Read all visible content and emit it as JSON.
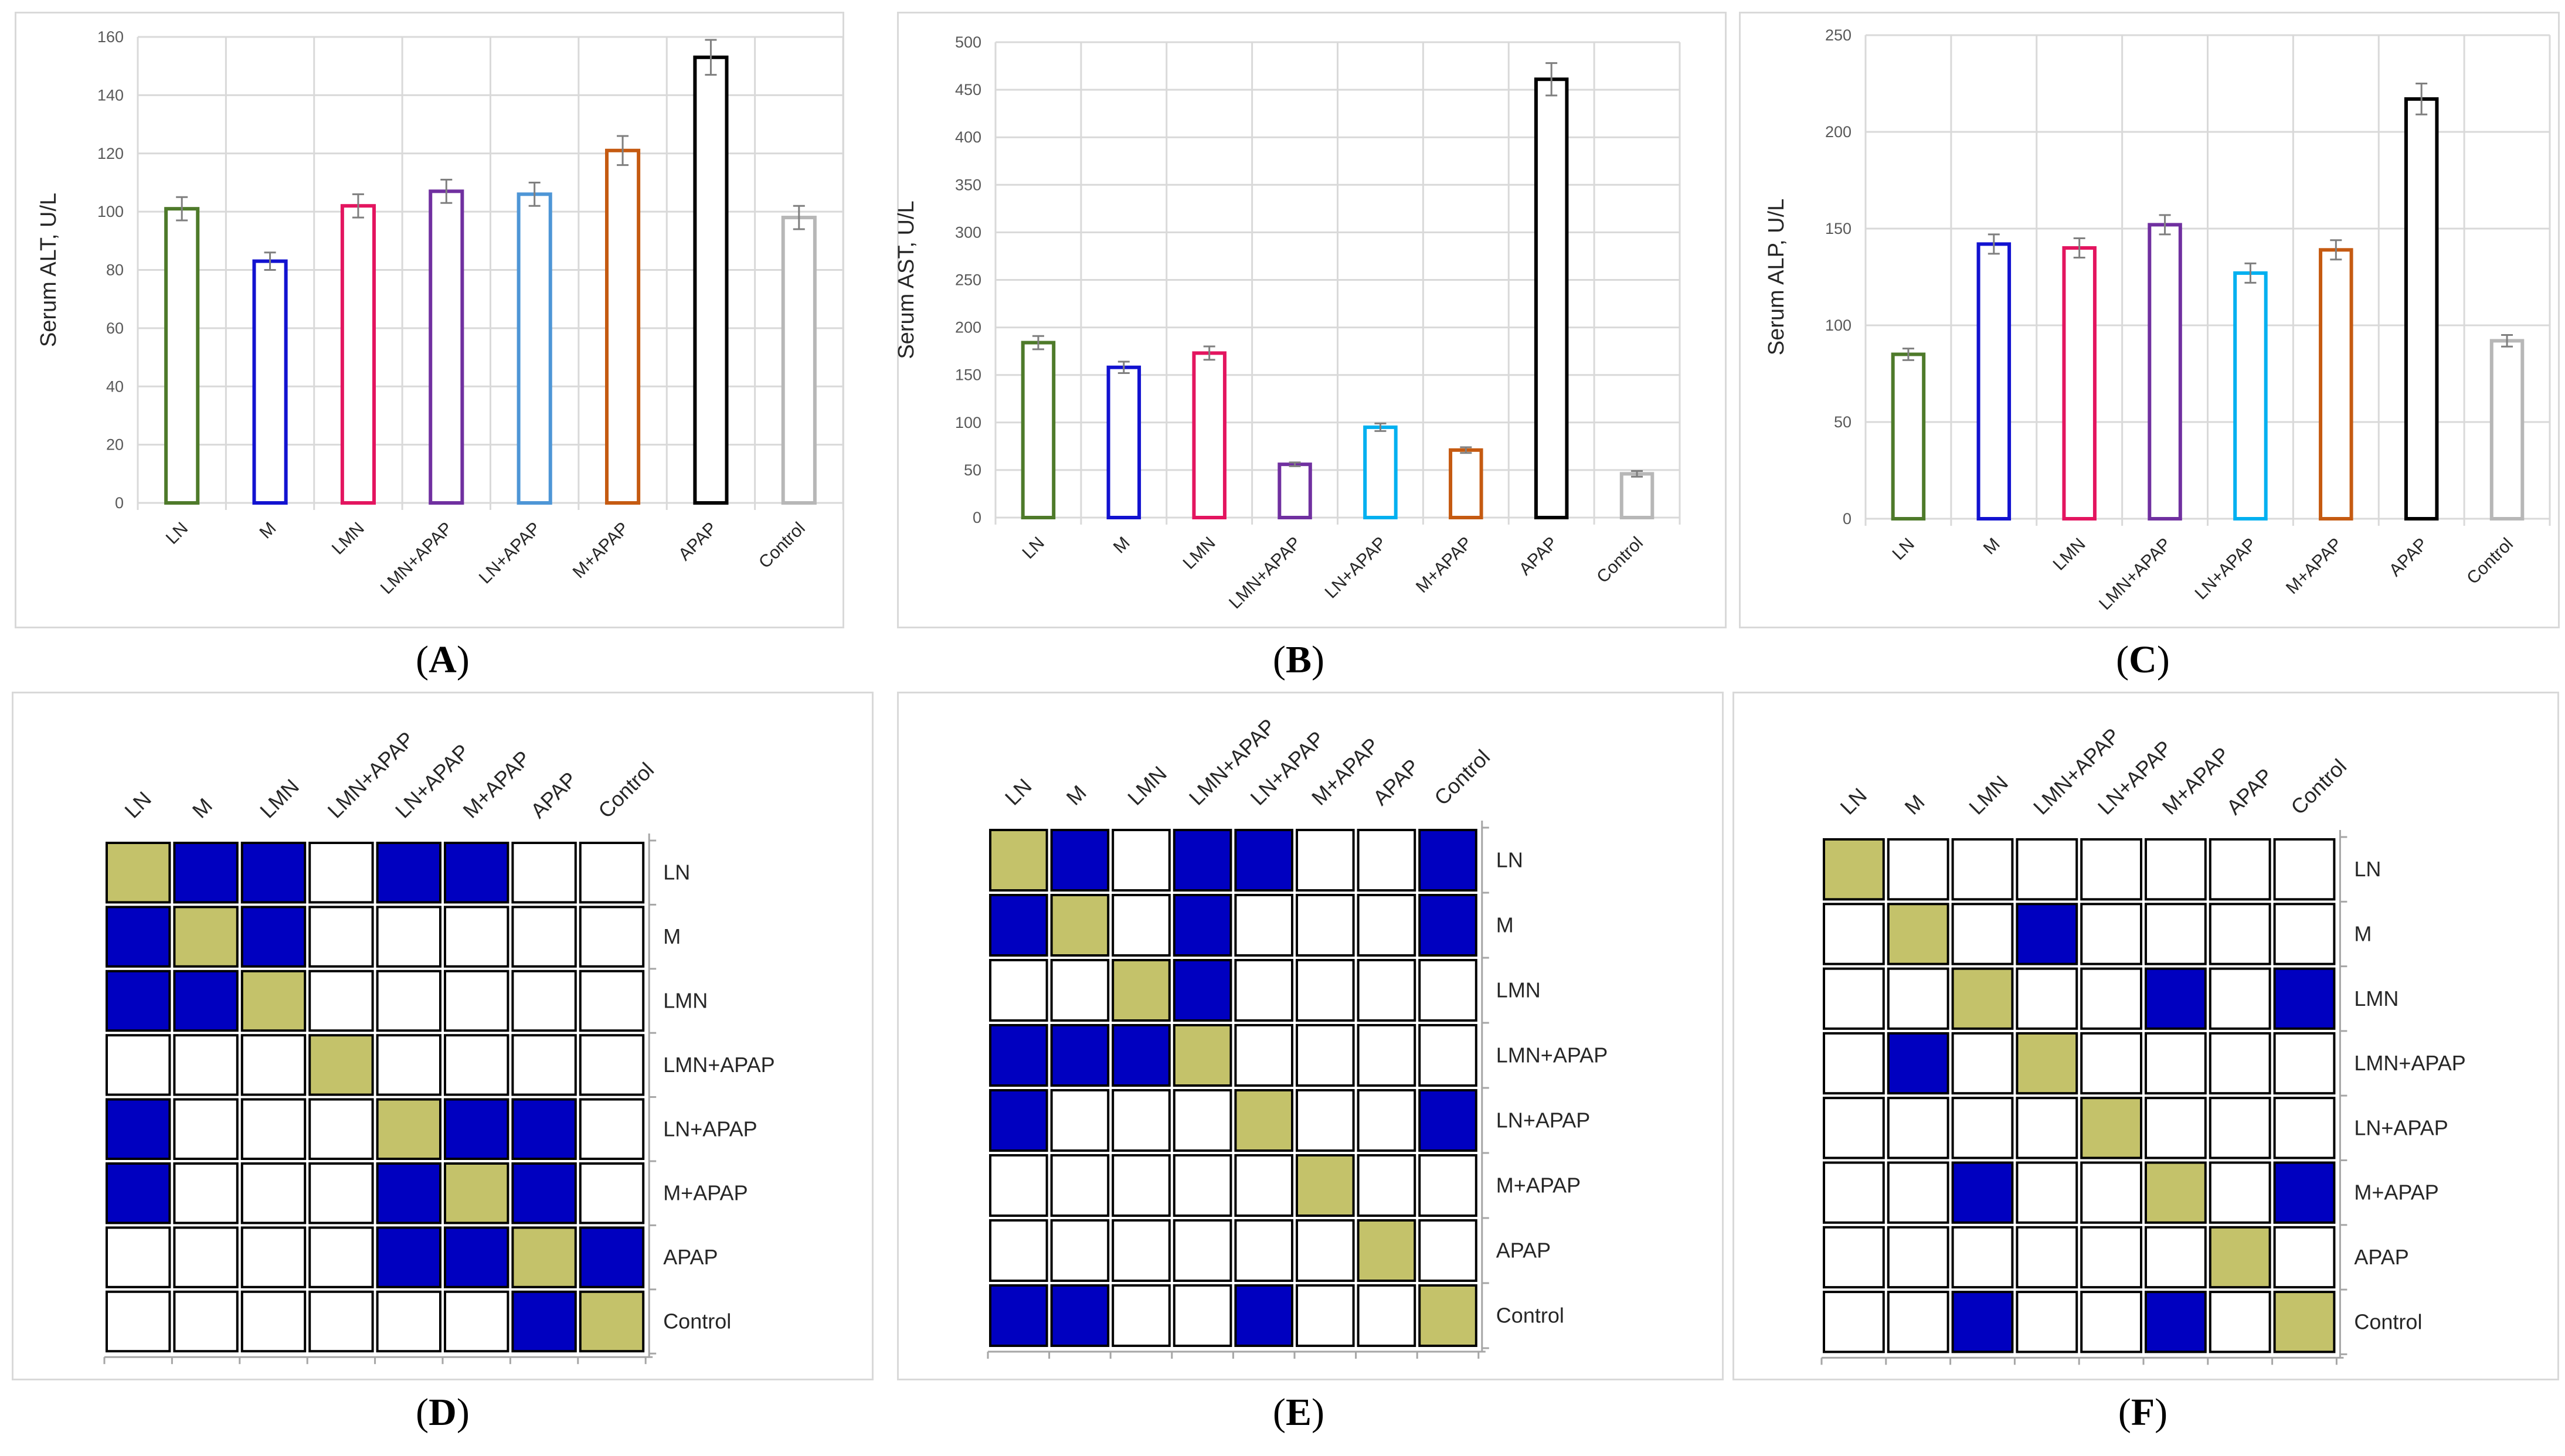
{
  "charts": [
    {
      "id": "A",
      "type": "bar",
      "caption_letter": "A",
      "ylabel": "Serum ALT, U/L",
      "ylim": [
        0,
        160
      ],
      "yticks": [
        0,
        20,
        40,
        60,
        80,
        100,
        120,
        140,
        160
      ],
      "categories": [
        "LN",
        "M",
        "LMN",
        "LMN+APAP",
        "LN+APAP",
        "M+APAP",
        "APAP",
        "Control"
      ],
      "values": [
        101,
        83,
        102,
        107,
        106,
        121,
        153,
        98
      ],
      "errors": [
        4,
        3,
        4,
        4,
        4,
        5,
        6,
        4
      ],
      "colors": [
        "#4e7a2a",
        "#1212d0",
        "#e3155f",
        "#7030a0",
        "#4e96d6",
        "#c55a11",
        "#000000",
        "#b7b7b7"
      ]
    },
    {
      "id": "B",
      "type": "bar",
      "caption_letter": "B",
      "ylabel": "Serum AST, U/L",
      "ylim": [
        0,
        500
      ],
      "yticks": [
        0,
        50,
        100,
        150,
        200,
        250,
        300,
        350,
        400,
        450,
        500
      ],
      "categories": [
        "LN",
        "M",
        "LMN",
        "LMN+APAP",
        "LN+APAP",
        "M+APAP",
        "APAP",
        "Control"
      ],
      "values": [
        184,
        158,
        173,
        56,
        95,
        71,
        461,
        46
      ],
      "errors": [
        7,
        6,
        7,
        2,
        4,
        3,
        17,
        3
      ],
      "colors": [
        "#4e7a2a",
        "#1212d0",
        "#e3155f",
        "#7030a0",
        "#00b0f0",
        "#c55a11",
        "#000000",
        "#b7b7b7"
      ]
    },
    {
      "id": "C",
      "type": "bar",
      "caption_letter": "C",
      "ylabel": "Serum ALP, U/L",
      "ylim": [
        0,
        250
      ],
      "yticks": [
        0,
        50,
        100,
        150,
        200,
        250
      ],
      "categories": [
        "LN",
        "M",
        "LMN",
        "LMN+APAP",
        "LN+APAP",
        "M+APAP",
        "APAP",
        "Control"
      ],
      "values": [
        85,
        142,
        140,
        152,
        127,
        139,
        217,
        92
      ],
      "errors": [
        3,
        5,
        5,
        5,
        5,
        5,
        8,
        3
      ],
      "colors": [
        "#4e7a2a",
        "#1212d0",
        "#e3155f",
        "#7030a0",
        "#00b0f0",
        "#c55a11",
        "#000000",
        "#b7b7b7"
      ]
    },
    {
      "id": "D",
      "type": "heatmap",
      "caption_letter": "D",
      "labels": [
        "LN",
        "M",
        "LMN",
        "LMN+APAP",
        "LN+APAP",
        "M+APAP",
        "APAP",
        "Control"
      ],
      "matrix": [
        [
          2,
          1,
          1,
          0,
          1,
          1,
          0,
          0
        ],
        [
          1,
          2,
          1,
          0,
          0,
          0,
          0,
          0
        ],
        [
          1,
          1,
          2,
          0,
          0,
          0,
          0,
          0
        ],
        [
          0,
          0,
          0,
          2,
          0,
          0,
          0,
          0
        ],
        [
          1,
          0,
          0,
          0,
          2,
          1,
          1,
          0
        ],
        [
          1,
          0,
          0,
          0,
          1,
          2,
          1,
          0
        ],
        [
          0,
          0,
          0,
          0,
          1,
          1,
          2,
          1
        ],
        [
          0,
          0,
          0,
          0,
          0,
          0,
          1,
          2
        ]
      ]
    },
    {
      "id": "E",
      "type": "heatmap",
      "caption_letter": "E",
      "labels": [
        "LN",
        "M",
        "LMN",
        "LMN+APAP",
        "LN+APAP",
        "M+APAP",
        "APAP",
        "Control"
      ],
      "matrix": [
        [
          2,
          1,
          0,
          1,
          1,
          0,
          0,
          1
        ],
        [
          1,
          2,
          0,
          1,
          0,
          0,
          0,
          1
        ],
        [
          0,
          0,
          2,
          1,
          0,
          0,
          0,
          0
        ],
        [
          1,
          1,
          1,
          2,
          0,
          0,
          0,
          0
        ],
        [
          1,
          0,
          0,
          0,
          2,
          0,
          0,
          1
        ],
        [
          0,
          0,
          0,
          0,
          0,
          2,
          0,
          0
        ],
        [
          0,
          0,
          0,
          0,
          0,
          0,
          2,
          0
        ],
        [
          1,
          1,
          0,
          0,
          1,
          0,
          0,
          2
        ]
      ]
    },
    {
      "id": "F",
      "type": "heatmap",
      "caption_letter": "F",
      "labels": [
        "LN",
        "M",
        "LMN",
        "LMN+APAP",
        "LN+APAP",
        "M+APAP",
        "APAP",
        "Control"
      ],
      "matrix": [
        [
          2,
          0,
          0,
          0,
          0,
          0,
          0,
          0
        ],
        [
          0,
          2,
          0,
          1,
          0,
          0,
          0,
          0
        ],
        [
          0,
          0,
          2,
          0,
          0,
          1,
          0,
          1
        ],
        [
          0,
          1,
          0,
          2,
          0,
          0,
          0,
          0
        ],
        [
          0,
          0,
          0,
          0,
          2,
          0,
          0,
          0
        ],
        [
          0,
          0,
          1,
          0,
          0,
          2,
          0,
          1
        ],
        [
          0,
          0,
          0,
          0,
          0,
          0,
          2,
          0
        ],
        [
          0,
          0,
          1,
          0,
          0,
          1,
          0,
          2
        ]
      ]
    }
  ],
  "heat_colors": {
    "empty": "#ffffff",
    "significant": "#0000c0",
    "self": "#c4c26a"
  }
}
